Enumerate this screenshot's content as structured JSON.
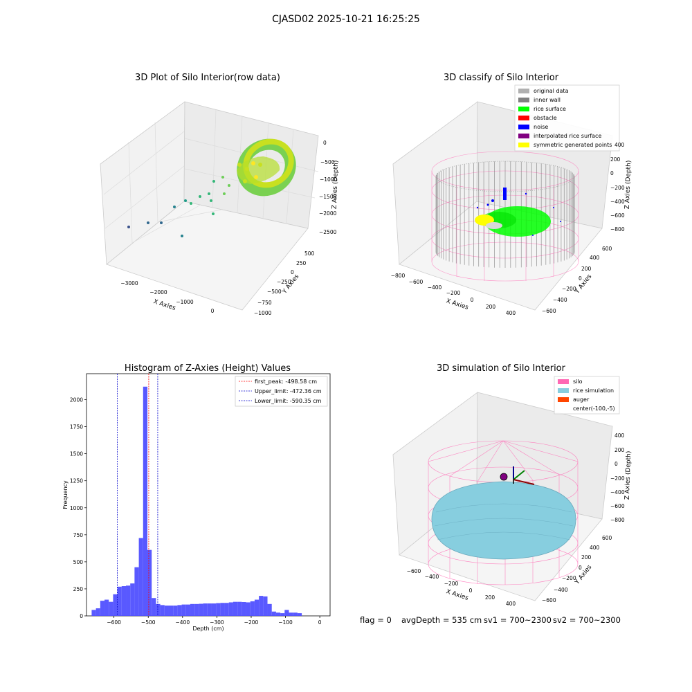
{
  "suptitle": "CJASD02 2025-10-21 16:25:25",
  "colors": {
    "pane": "#f2f2f2",
    "pane_line": "#cccccc",
    "grid": "#dddddd",
    "hist_bar": "#5050ff",
    "peak": "#ff0000",
    "limit": "#0000cc",
    "silo_pink": "#ff69b4",
    "rice_sim": "#87cedf",
    "auger": "#ff4500"
  },
  "chart_data": [
    {
      "type": "scatter3d",
      "title": "3D Plot of Silo Interior(row data)",
      "xlabel": "X Axies",
      "ylabel": "Y Axies",
      "zlabel": "Z Axies (Depth)",
      "x_ticks": [
        "−3000",
        "−2000",
        "−1000",
        "0"
      ],
      "y_ticks": [
        "−1000",
        "−750",
        "−500",
        "−250",
        "0",
        "250",
        "500"
      ],
      "z_ticks": [
        "0",
        "−500",
        "−1000",
        "−1500",
        "−2000",
        "−2500"
      ],
      "colormap": "viridis",
      "points_note": "dense ring of points near origin, sparse outliers extending to x≈−3000"
    },
    {
      "type": "scatter3d",
      "title": "3D classify of Silo Interior",
      "xlabel": "X Axies",
      "ylabel": "Y Axies",
      "zlabel": "Z Axies (Depth)",
      "x_ticks": [
        "−800",
        "−600",
        "−400",
        "−200",
        "0",
        "200",
        "400"
      ],
      "y_ticks": [
        "−600",
        "−400",
        "−200",
        "0",
        "200",
        "400",
        "600"
      ],
      "z_ticks": [
        "400",
        "200",
        "0",
        "−200",
        "−400",
        "−600",
        "−800"
      ],
      "legend_position": "upper-right",
      "legend": [
        {
          "label": "original data",
          "color": "#b0b0b0"
        },
        {
          "label": "inner wall",
          "color": "#808080"
        },
        {
          "label": "rice surface",
          "color": "#00ff00"
        },
        {
          "label": "obstacle",
          "color": "#ff0000"
        },
        {
          "label": "noise",
          "color": "#0000ff"
        },
        {
          "label": "interpolated rice surface",
          "color": "#800080"
        },
        {
          "label": "symmetric generated points",
          "color": "#ffff00"
        }
      ]
    },
    {
      "type": "bar",
      "title": "Histogram of Z-Axies (Height) Values",
      "xlabel": "Depth (cm)",
      "ylabel": "Frequency",
      "xlim": [
        -680,
        30
      ],
      "ylim": [
        0,
        2240
      ],
      "x_ticks": [
        -600,
        -500,
        -400,
        -300,
        -200,
        -100,
        0
      ],
      "x_tick_labels": [
        "−600",
        "−500",
        "−400",
        "−300",
        "−200",
        "−100",
        "0"
      ],
      "y_ticks": [
        0,
        250,
        500,
        750,
        1000,
        1250,
        1500,
        1750,
        2000
      ],
      "y_tick_labels": [
        "0",
        "250",
        "500",
        "750",
        "1000",
        "1250",
        "1500",
        "1750",
        "2000"
      ],
      "bin_start": -665,
      "bin_width": 12.5,
      "values": [
        55,
        70,
        140,
        150,
        130,
        200,
        270,
        275,
        280,
        300,
        450,
        720,
        2120,
        610,
        165,
        110,
        100,
        95,
        95,
        95,
        100,
        105,
        105,
        110,
        110,
        112,
        115,
        115,
        115,
        118,
        120,
        120,
        125,
        130,
        130,
        128,
        125,
        135,
        150,
        185,
        180,
        110,
        40,
        30,
        25,
        55,
        30,
        30,
        25
      ],
      "lines": [
        {
          "label": "first_peak: -498.58 cm",
          "x": -498.58,
          "color": "#ff0000"
        },
        {
          "label": "Upper_limit: -472.36 cm",
          "x": -472.36,
          "color": "#0000cc"
        },
        {
          "label": "Lower_limit: -590.35 cm",
          "x": -590.35,
          "color": "#0000cc"
        }
      ],
      "legend_position": "upper-right"
    },
    {
      "type": "surface3d",
      "title": "3D simulation of Silo Interior",
      "xlabel": "X Axies",
      "ylabel": "Y Axies",
      "zlabel": "Z Axies (Depth)",
      "x_ticks": [
        "−600",
        "−400",
        "−200",
        "0",
        "200",
        "400"
      ],
      "y_ticks": [
        "−600",
        "−400",
        "−200",
        "0",
        "200",
        "400",
        "600"
      ],
      "z_ticks": [
        "400",
        "200",
        "0",
        "−200",
        "−400",
        "−600",
        "−800"
      ],
      "legend_position": "upper-right",
      "legend": [
        {
          "label": "silo",
          "color": "#ff69b4"
        },
        {
          "label": "rice simulation",
          "color": "#87cedf"
        },
        {
          "label": "auger",
          "color": "#ff4500"
        },
        {
          "label": "center(-100,-5)",
          "color": ""
        }
      ]
    }
  ],
  "footer": {
    "flag": "flag = 0",
    "avg_depth": "avgDepth = 535 cm",
    "sv1": "sv1 = 700~2300",
    "sv2": "sv2 = 700~2300"
  }
}
